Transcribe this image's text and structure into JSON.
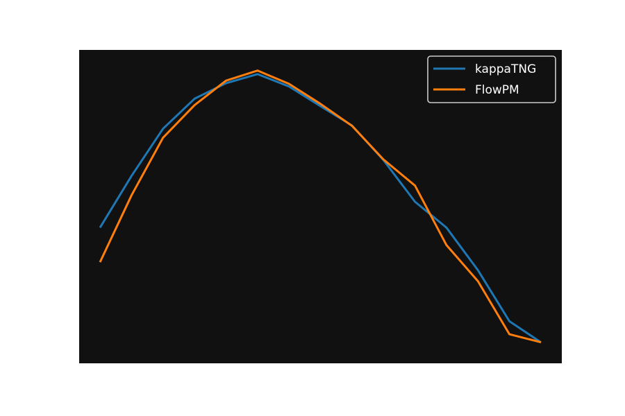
{
  "chart_data": {
    "type": "line",
    "title": "",
    "xlabel": "",
    "ylabel": "",
    "axes_visible": false,
    "grid": false,
    "legend_placement": "top-right",
    "background_color": "#111111",
    "xlim": [
      0,
      15
    ],
    "ylim": [
      -0.3,
      9.4
    ],
    "x": [
      0,
      1,
      2,
      3,
      4,
      5,
      6,
      7,
      8,
      9,
      10,
      11,
      12,
      13,
      14
    ],
    "series": [
      {
        "name": "kappaTNG",
        "color": "#1f77b4",
        "values": [
          3.9,
          5.5,
          6.96,
          7.89,
          8.37,
          8.65,
          8.27,
          7.66,
          7.06,
          5.99,
          4.7,
          3.9,
          2.58,
          1.0,
          0.35
        ]
      },
      {
        "name": "FlowPM",
        "color": "#ff7f0e",
        "values": [
          2.83,
          4.9,
          6.68,
          7.69,
          8.45,
          8.76,
          8.35,
          7.73,
          7.05,
          6.01,
          5.2,
          3.36,
          2.24,
          0.6,
          0.35
        ]
      }
    ]
  }
}
